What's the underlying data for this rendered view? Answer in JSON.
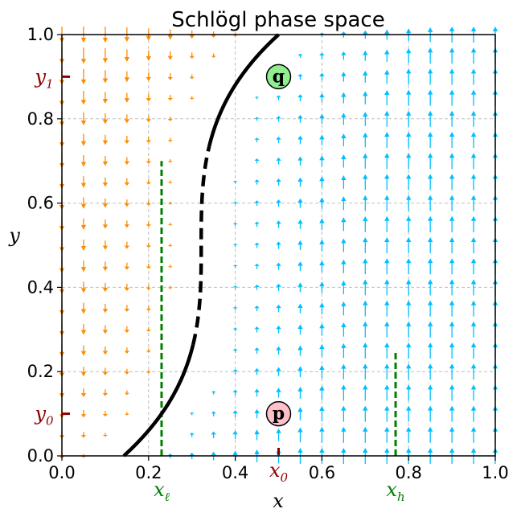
{
  "chart_data": {
    "type": "line",
    "title": "Schlögl phase space",
    "xlabel": "x",
    "ylabel": "y",
    "xlim": [
      0,
      1
    ],
    "ylim": [
      0,
      1
    ],
    "xticks": [
      "0.0",
      "0.2",
      "0.4",
      "0.6",
      "0.8",
      "1.0"
    ],
    "yticks": [
      "0.0",
      "0.2",
      "0.4",
      "0.6",
      "0.8",
      "1.0"
    ],
    "grid": true,
    "curve": {
      "name": "",
      "formula_x": "x = ((y - 0.5)^3 - 0.125) / 0.7 + 0.5 (cubic fit to S-shaped curve)",
      "stable_lower": {
        "y_from": 0,
        "y_to": 0.2635
      },
      "unstable_middle": {
        "y_from": 0.2635,
        "y_to": 0.7365
      },
      "stable_upper": {
        "y_from": 0.7365,
        "y_to": 1.0
      }
    },
    "annotations": {
      "x_markers": [
        {
          "label": "x",
          "sub": "ℓ",
          "x": 0.23,
          "y_top": 0.7,
          "color": "green"
        },
        {
          "label": "x",
          "sub": "h",
          "x": 0.77,
          "y_top": 0.25,
          "color": "green"
        },
        {
          "label": "x",
          "sub": "0",
          "x": 0.5,
          "color": "darkred"
        }
      ],
      "y_markers": [
        {
          "label": "y",
          "sub": "1",
          "y": 0.9,
          "color": "darkred"
        },
        {
          "label": "y",
          "sub": "0",
          "y": 0.1,
          "color": "darkred"
        }
      ],
      "points": [
        {
          "label": "q",
          "x": 0.5,
          "y": 0.9,
          "fill": "#90ee90"
        },
        {
          "label": "p",
          "x": 0.5,
          "y": 0.1,
          "fill": "#ffc0cb"
        }
      ]
    },
    "vector_field": {
      "left_of_curve_direction": "down",
      "right_of_curve_direction": "up",
      "left_color": "#ff8c00",
      "right_color": "#00bfff"
    },
    "colors": {
      "curve": "#000000",
      "grid": "#b0b0b0",
      "green_guides": "#008000",
      "dark_red": "#8b0000"
    }
  }
}
